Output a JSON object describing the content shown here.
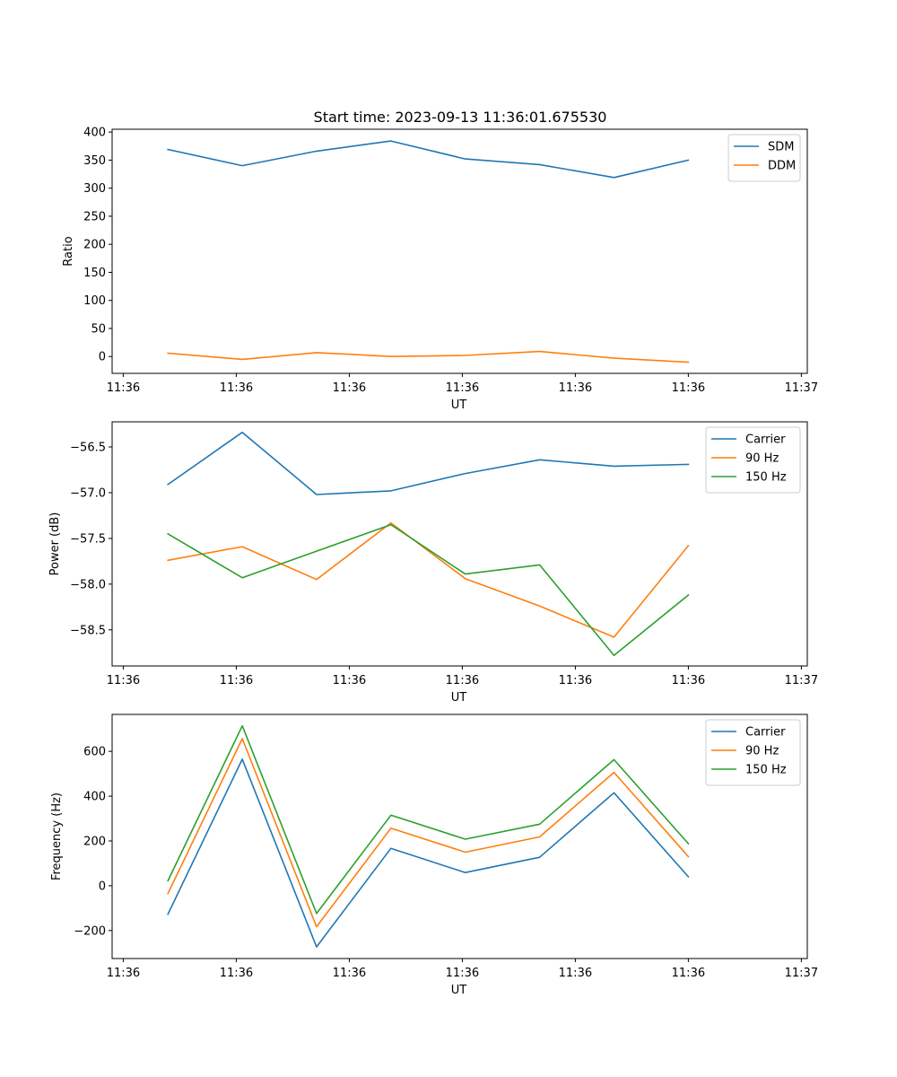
{
  "title": "Start time: 2023-09-13 11:36:01.675530",
  "colors": {
    "blue": "#1f77b4",
    "orange": "#ff7f0e",
    "green": "#2ca02c"
  },
  "chart_data": [
    {
      "type": "line",
      "xlabel": "UT",
      "ylabel": "Ratio",
      "x": [
        1,
        2,
        3,
        4,
        5,
        6,
        7,
        8
      ],
      "xlim": [
        0.25,
        9.6
      ],
      "xticks": [
        0.4,
        1.92,
        3.44,
        4.96,
        6.48,
        8.0,
        9.52
      ],
      "xtick_labels": [
        "11:36",
        "11:36",
        "11:36",
        "11:36",
        "11:36",
        "11:36",
        "11:37"
      ],
      "ylim": [
        -30,
        405
      ],
      "yticks": [
        0,
        50,
        100,
        150,
        200,
        250,
        300,
        350,
        400
      ],
      "ytick_labels": [
        "0",
        "50",
        "100",
        "150",
        "200",
        "250",
        "300",
        "350",
        "400"
      ],
      "legend": "top-right",
      "series": [
        {
          "name": "SDM",
          "color": "#1f77b4",
          "values": [
            369,
            340,
            366,
            384,
            352,
            342,
            319,
            350
          ]
        },
        {
          "name": "DDM",
          "color": "#ff7f0e",
          "values": [
            6,
            -5,
            7,
            0,
            2,
            9,
            -3,
            -10
          ]
        }
      ]
    },
    {
      "type": "line",
      "xlabel": "UT",
      "ylabel": "Power (dB)",
      "x": [
        1,
        2,
        3,
        4,
        5,
        6,
        7,
        8
      ],
      "xlim": [
        0.25,
        9.6
      ],
      "xticks": [
        0.4,
        1.92,
        3.44,
        4.96,
        6.48,
        8.0,
        9.52
      ],
      "xtick_labels": [
        "11:36",
        "11:36",
        "11:36",
        "11:36",
        "11:36",
        "11:36",
        "11:37"
      ],
      "ylim": [
        -58.895,
        -56.225
      ],
      "yticks": [
        -58.5,
        -58.0,
        -57.5,
        -57.0,
        -56.5
      ],
      "ytick_labels": [
        "−58.5",
        "−58.0",
        "−57.5",
        "−57.0",
        "−56.5"
      ],
      "legend": "top-right",
      "series": [
        {
          "name": "Carrier",
          "color": "#1f77b4",
          "values": [
            -56.91,
            -56.34,
            -57.02,
            -56.98,
            -56.79,
            -56.64,
            -56.71,
            -56.69
          ]
        },
        {
          "name": "90 Hz",
          "color": "#ff7f0e",
          "values": [
            -57.74,
            -57.59,
            -57.95,
            -57.33,
            -57.94,
            -58.24,
            -58.58,
            -57.58
          ]
        },
        {
          "name": "150 Hz",
          "color": "#2ca02c",
          "values": [
            -57.45,
            -57.93,
            -57.64,
            -57.35,
            -57.89,
            -57.79,
            -58.78,
            -58.12
          ]
        }
      ]
    },
    {
      "type": "line",
      "xlabel": "UT",
      "ylabel": "Frequency (Hz)",
      "x": [
        1,
        2,
        3,
        4,
        5,
        6,
        7,
        8
      ],
      "xlim": [
        0.25,
        9.6
      ],
      "xticks": [
        0.4,
        1.92,
        3.44,
        4.96,
        6.48,
        8.0,
        9.52
      ],
      "xtick_labels": [
        "11:36",
        "11:36",
        "11:36",
        "11:36",
        "11:36",
        "11:36",
        "11:37"
      ],
      "ylim": [
        -325,
        765
      ],
      "yticks": [
        -200,
        0,
        200,
        400,
        600
      ],
      "ytick_labels": [
        "−200",
        "0",
        "200",
        "400",
        "600"
      ],
      "legend": "top-right",
      "series": [
        {
          "name": "Carrier",
          "color": "#1f77b4",
          "values": [
            -127,
            565,
            -273,
            167,
            59,
            127,
            415,
            40
          ]
        },
        {
          "name": "90 Hz",
          "color": "#ff7f0e",
          "values": [
            -35,
            657,
            -183,
            257,
            150,
            218,
            506,
            130
          ]
        },
        {
          "name": "150 Hz",
          "color": "#2ca02c",
          "values": [
            22,
            714,
            -124,
            315,
            208,
            275,
            563,
            188
          ]
        }
      ]
    }
  ]
}
